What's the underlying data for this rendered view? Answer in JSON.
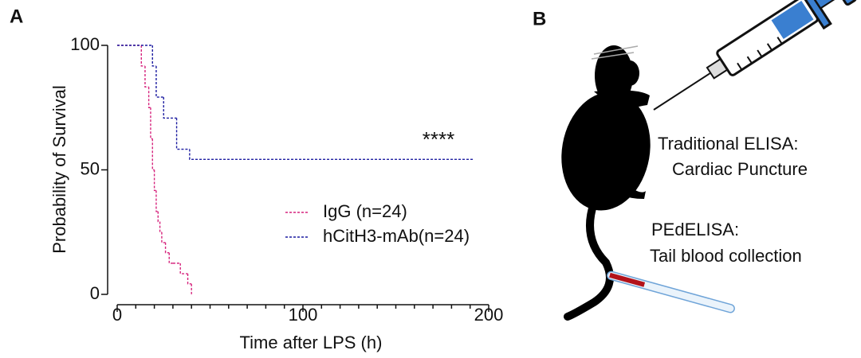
{
  "panel_labels": [
    "A",
    "B"
  ],
  "chart_data": {
    "type": "survival",
    "x_label": "Time after LPS (h)",
    "y_label": "Probability of Survival",
    "annotation": "****",
    "xlim": [
      0,
      200
    ],
    "xticks": [
      0,
      100,
      200
    ],
    "xminorticks": [
      10,
      20,
      30,
      40,
      50,
      60,
      70,
      80,
      90,
      110,
      120,
      130,
      140,
      150,
      160,
      170,
      180,
      190
    ],
    "ylim": [
      0,
      100
    ],
    "yticks": [
      0,
      50,
      100
    ],
    "line_style": "dashed",
    "series": [
      {
        "name": "IgG (n=24)",
        "color": "#d6247d",
        "x": [
          0,
          13,
          15,
          17,
          18,
          19,
          20,
          21,
          22,
          23,
          24,
          26,
          28,
          30,
          34,
          38,
          40
        ],
        "values": [
          100,
          91.7,
          83.3,
          75,
          62.5,
          50,
          41.7,
          33.3,
          29.2,
          25,
          20.8,
          16.7,
          12.5,
          12.5,
          8.3,
          4.2,
          0
        ]
      },
      {
        "name": "hCitH3-mAb(n=24)",
        "color": "#1c1ca0",
        "x": [
          0,
          19,
          21,
          25,
          32,
          39,
          192
        ],
        "values": [
          100,
          91.7,
          79.2,
          70.8,
          58.3,
          54.2,
          54.2
        ]
      }
    ]
  },
  "diagram": {
    "labels": [
      "Traditional ELISA:",
      "Cardiac Puncture",
      "PEdELISA:",
      "Tail blood collection"
    ]
  }
}
